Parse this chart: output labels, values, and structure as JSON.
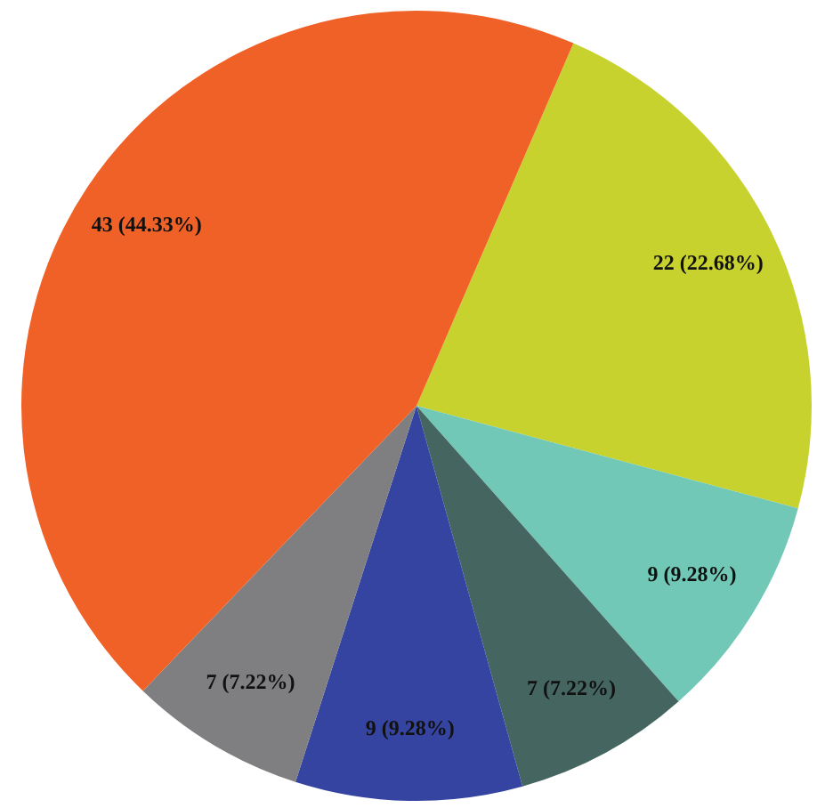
{
  "chart_data": {
    "type": "pie",
    "categories": [
      null,
      null,
      null,
      null,
      null,
      null
    ],
    "values": [
      22,
      9,
      7,
      9,
      7,
      43
    ],
    "colors": [
      "#c8d22e",
      "#72c8b6",
      "#456660",
      "#3444a0",
      "#7f7e80",
      "#f06128"
    ],
    "value_labels": [
      "22 (22.68%)",
      "9 (9.28%)",
      "7 (7.22%)",
      "9 (9.28%)",
      "7 (7.22%)",
      "43 (44.33%)"
    ]
  }
}
